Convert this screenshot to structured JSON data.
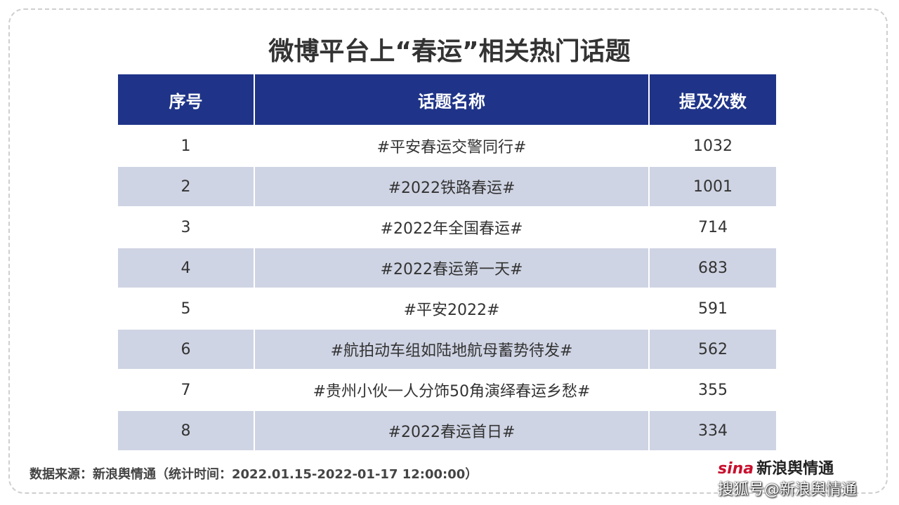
{
  "header": {
    "title": "微博平台上“春运”相关热门话题"
  },
  "table": {
    "columns": [
      "序号",
      "话题名称",
      "提及次数"
    ],
    "rows": [
      [
        1,
        "#平安春运交警同行#",
        1032
      ],
      [
        2,
        "#2022铁路春运#",
        1001
      ],
      [
        3,
        "#2022年全国春运#",
        714
      ],
      [
        4,
        "#2022春运第一天#",
        683
      ],
      [
        5,
        "#平安2022#",
        591
      ],
      [
        6,
        "#航拍动车组如陆地航母蓄势待发#",
        562
      ],
      [
        7,
        "#贵州小伙一人分饰50角演绎春运乡愁#",
        355
      ],
      [
        8,
        "#2022春运首日#",
        334
      ]
    ]
  },
  "footer": {
    "source": "数据来源：新浪舆情通（统计时间：2022.01.15-2022-01-17 12:00:00）",
    "logo_brand": "sina",
    "logo_name": "新浪舆情通",
    "watermark": "搜狐号@新浪舆情通"
  }
}
